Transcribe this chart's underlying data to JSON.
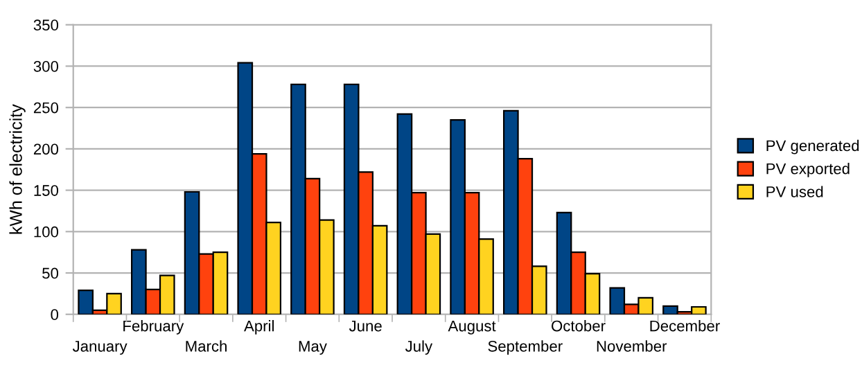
{
  "chart_data": {
    "type": "bar",
    "ylabel": "kWh of electricity",
    "categories": [
      "January",
      "February",
      "March",
      "April",
      "May",
      "June",
      "July",
      "August",
      "September",
      "October",
      "November",
      "December"
    ],
    "series": [
      {
        "name": "PV generated",
        "color": "#004586",
        "values": [
          29,
          78,
          148,
          304,
          278,
          278,
          242,
          235,
          246,
          123,
          32,
          10
        ]
      },
      {
        "name": "PV exported",
        "color": "#ff420e",
        "values": [
          5,
          30,
          73,
          194,
          164,
          172,
          147,
          147,
          188,
          75,
          12,
          3
        ]
      },
      {
        "name": "PV used",
        "color": "#ffd320",
        "values": [
          25,
          47,
          75,
          111,
          114,
          107,
          97,
          91,
          58,
          49,
          20,
          9
        ]
      }
    ],
    "ylim": [
      0,
      350
    ],
    "yticks": [
      0,
      50,
      100,
      150,
      200,
      250,
      300,
      350
    ],
    "grid": "y",
    "legend": "right"
  }
}
